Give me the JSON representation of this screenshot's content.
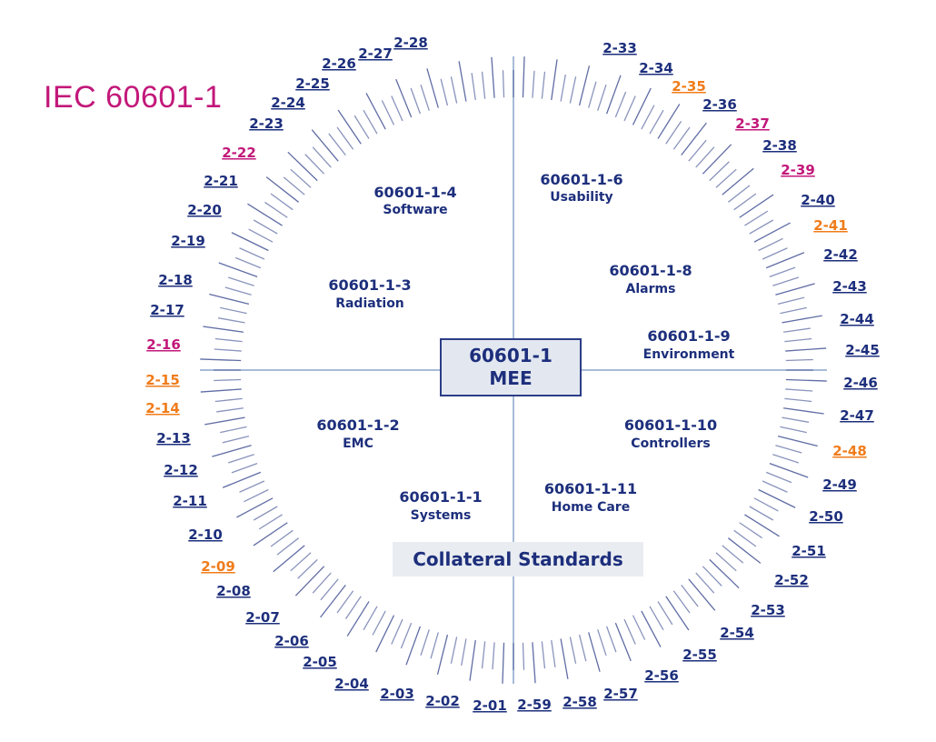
{
  "title": "IEC 60601-1",
  "center": {
    "line1": "60601-1",
    "line2": "MEE"
  },
  "collateral_label": "Collateral Standards",
  "colors": {
    "title": "#c2187a",
    "standard": "#1d2f7c",
    "orange": "#f07c1a",
    "magenta": "#c2187a",
    "axis": "#8aa6cc",
    "tick": "#2b3c86",
    "center_fill": "#e3e8f0",
    "center_border": "#2b3c86",
    "collateral_fill": "#e9ecf1"
  },
  "sectors": [
    {
      "num": "60601-1-4",
      "sub": "Software"
    },
    {
      "num": "60601-1-6",
      "sub": "Usability"
    },
    {
      "num": "60601-1-3",
      "sub": "Radiation"
    },
    {
      "num": "60601-1-8",
      "sub": "Alarms"
    },
    {
      "num": "60601-1-9",
      "sub": "Environment"
    },
    {
      "num": "60601-1-2",
      "sub": "EMC"
    },
    {
      "num": "60601-1-10",
      "sub": "Controllers"
    },
    {
      "num": "60601-1-1",
      "sub": "Systems"
    },
    {
      "num": "60601-1-11",
      "sub": "Home Care"
    }
  ],
  "labels": [
    {
      "t": "2-01",
      "c": "standard"
    },
    {
      "t": "2-02",
      "c": "standard"
    },
    {
      "t": "2-03",
      "c": "standard"
    },
    {
      "t": "2-04",
      "c": "standard"
    },
    {
      "t": "2-05",
      "c": "standard"
    },
    {
      "t": "2-06",
      "c": "standard"
    },
    {
      "t": "2-07",
      "c": "standard"
    },
    {
      "t": "2-08",
      "c": "standard"
    },
    {
      "t": "2-09",
      "c": "orange"
    },
    {
      "t": "2-10",
      "c": "standard"
    },
    {
      "t": "2-11",
      "c": "standard"
    },
    {
      "t": "2-12",
      "c": "standard"
    },
    {
      "t": "2-13",
      "c": "standard"
    },
    {
      "t": "2-14",
      "c": "orange"
    },
    {
      "t": "2-15",
      "c": "orange"
    },
    {
      "t": "2-16",
      "c": "magenta"
    },
    {
      "t": "2-17",
      "c": "standard"
    },
    {
      "t": "2-18",
      "c": "standard"
    },
    {
      "t": "2-19",
      "c": "standard"
    },
    {
      "t": "2-20",
      "c": "standard"
    },
    {
      "t": "2-21",
      "c": "standard"
    },
    {
      "t": "2-22",
      "c": "magenta"
    },
    {
      "t": "2-23",
      "c": "standard"
    },
    {
      "t": "2-24",
      "c": "standard"
    },
    {
      "t": "2-25",
      "c": "standard"
    },
    {
      "t": "2-26",
      "c": "standard"
    },
    {
      "t": "2-27",
      "c": "standard"
    },
    {
      "t": "2-28",
      "c": "standard"
    },
    {
      "t": "2-33",
      "c": "standard"
    },
    {
      "t": "2-34",
      "c": "standard"
    },
    {
      "t": "2-35",
      "c": "orange"
    },
    {
      "t": "2-36",
      "c": "standard"
    },
    {
      "t": "2-37",
      "c": "magenta"
    },
    {
      "t": "2-38",
      "c": "standard"
    },
    {
      "t": "2-39",
      "c": "magenta"
    },
    {
      "t": "2-40",
      "c": "standard"
    },
    {
      "t": "2-41",
      "c": "orange"
    },
    {
      "t": "2-42",
      "c": "standard"
    },
    {
      "t": "2-43",
      "c": "standard"
    },
    {
      "t": "2-44",
      "c": "standard"
    },
    {
      "t": "2-45",
      "c": "standard"
    },
    {
      "t": "2-46",
      "c": "standard"
    },
    {
      "t": "2-47",
      "c": "standard"
    },
    {
      "t": "2-48",
      "c": "orange"
    },
    {
      "t": "2-49",
      "c": "standard"
    },
    {
      "t": "2-50",
      "c": "standard"
    },
    {
      "t": "2-51",
      "c": "standard"
    },
    {
      "t": "2-52",
      "c": "standard"
    },
    {
      "t": "2-53",
      "c": "standard"
    },
    {
      "t": "2-54",
      "c": "standard"
    },
    {
      "t": "2-55",
      "c": "standard"
    },
    {
      "t": "2-56",
      "c": "standard"
    },
    {
      "t": "2-57",
      "c": "standard"
    },
    {
      "t": "2-58",
      "c": "standard"
    },
    {
      "t": "2-59",
      "c": "standard"
    }
  ]
}
